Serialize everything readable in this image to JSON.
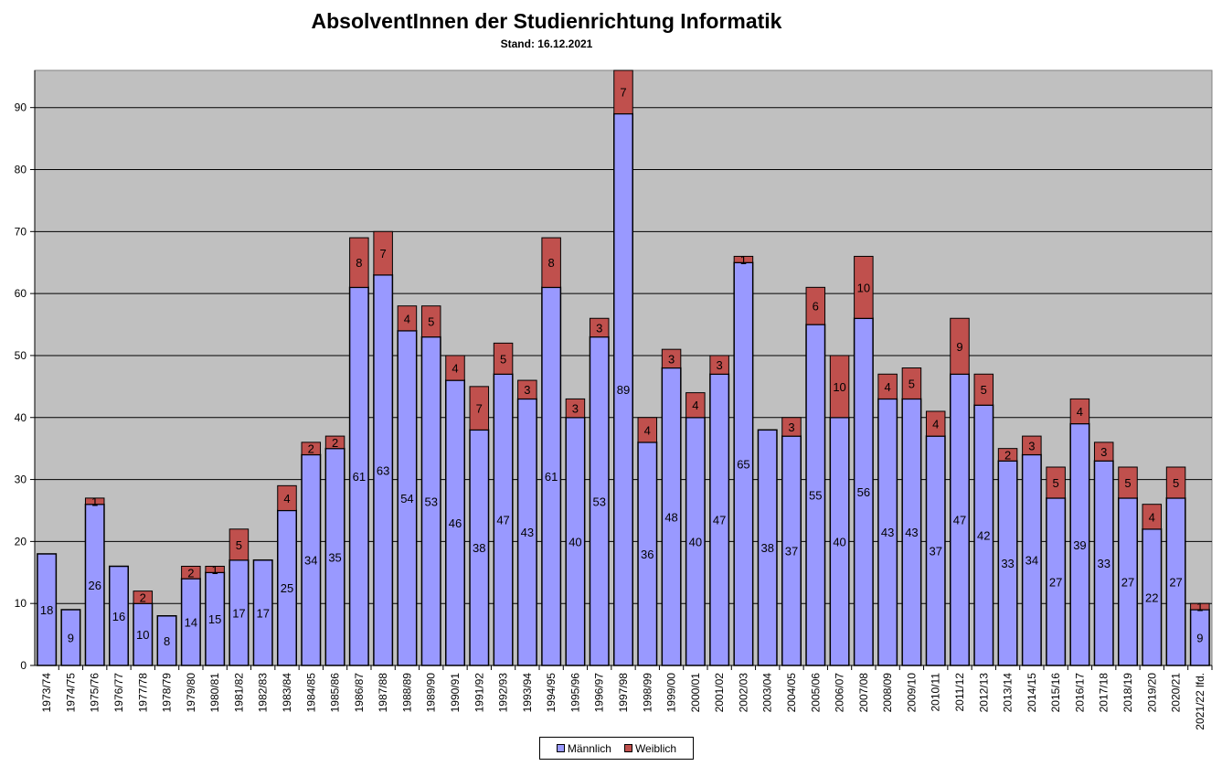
{
  "chart_data": {
    "type": "bar",
    "stacked": true,
    "title": "AbsolventInnen der Studienrichtung Informatik",
    "subtitle": "Stand: 16.12.2021",
    "ylim": [
      0,
      96
    ],
    "yticks": [
      0,
      10,
      20,
      30,
      40,
      50,
      60,
      70,
      80,
      90
    ],
    "grid": true,
    "legend_position": "bottom",
    "colors": {
      "plot_bg": "#c0c0c0",
      "maennlich": "#9999ff",
      "weiblich": "#c0504d"
    },
    "categories": [
      "1973/74",
      "1974/75",
      "1975/76",
      "1976/77",
      "1977/78",
      "1978/79",
      "1979/80",
      "1980/81",
      "1981/82",
      "1982/83",
      "1983/84",
      "1984/85",
      "1985/86",
      "1986/87",
      "1987/88",
      "1988/89",
      "1989/90",
      "1990/91",
      "1991/92",
      "1992/93",
      "1993/94",
      "1994/95",
      "1995/96",
      "1996/97",
      "1997/98",
      "1998/99",
      "1999/00",
      "2000/01",
      "2001/02",
      "2002/03",
      "2003/04",
      "2004/05",
      "2005/06",
      "2006/07",
      "2007/08",
      "2008/09",
      "2009/10",
      "2010/11",
      "2011/12",
      "2012/13",
      "2013/14",
      "2014/15",
      "2015/16",
      "2016/17",
      "2017/18",
      "2018/19",
      "2019/20",
      "2020/21",
      "2021/22 lfd."
    ],
    "series": [
      {
        "name": "Männlich",
        "values": [
          18,
          9,
          26,
          16,
          10,
          8,
          14,
          15,
          17,
          17,
          25,
          34,
          35,
          61,
          63,
          54,
          53,
          46,
          38,
          47,
          43,
          61,
          40,
          53,
          89,
          36,
          48,
          40,
          47,
          65,
          38,
          37,
          55,
          40,
          56,
          43,
          43,
          37,
          47,
          42,
          33,
          34,
          27,
          39,
          33,
          27,
          22,
          27,
          9
        ]
      },
      {
        "name": "Weiblich",
        "values": [
          0,
          0,
          1,
          0,
          2,
          0,
          2,
          1,
          5,
          0,
          4,
          2,
          2,
          8,
          7,
          4,
          5,
          4,
          7,
          5,
          3,
          8,
          3,
          3,
          7,
          4,
          3,
          4,
          3,
          1,
          0,
          3,
          6,
          10,
          10,
          4,
          5,
          4,
          9,
          5,
          2,
          3,
          5,
          4,
          3,
          5,
          4,
          5,
          1
        ]
      }
    ]
  }
}
